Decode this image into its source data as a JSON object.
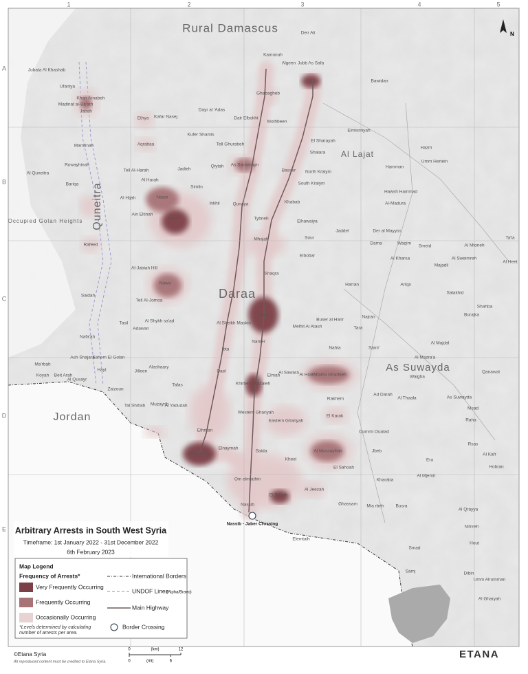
{
  "title": "Arbitrary Arrests in South West Syria",
  "timeframe": "Timeframe: 1st January 2022 - 31st December 2022",
  "date": "6th February 2023",
  "grid": {
    "columns": [
      "1",
      "2",
      "3",
      "4",
      "5"
    ],
    "rows": [
      "A",
      "B",
      "C",
      "D",
      "E"
    ]
  },
  "regions": [
    "Rural Damascus",
    "Al Lajat",
    "Quneitra",
    "Daraa",
    "As Suwayda",
    "Jordan",
    "Occupied Golan Heights"
  ],
  "places": [
    "Kamonah",
    "Deir Ali",
    "Algeen",
    "Jubb As Safa",
    "Ghabagheb",
    "Dayr al 'Adas",
    "Dair Elbokht",
    "Mothbeen",
    "Kafar Nasej",
    "Ethya",
    "Aqrabaa",
    "Kufer Shamis",
    "Tell Ghurabeh",
    "Qiytah",
    "Jadieh",
    "As Sanamayn",
    "Basser",
    "Shaiara",
    "North Kraiym",
    "South Kraiym",
    "Nazar",
    "Simlin",
    "Inkhil",
    "Qunaya",
    "Jasim",
    "Khabab",
    "Tybneh",
    "Elhawaiya",
    "Mhajah",
    "Elbobar",
    "Nawa",
    "Shaqra",
    "Izraa",
    "Al Sheikh Maskin",
    "Melhit Al Atash",
    "Buser al Harir",
    "Nahta",
    "Namer",
    "Ibta",
    "Dael",
    "Elmah",
    "Al Sawara",
    "Al Hrak",
    "Mlaiha Gharbieh",
    "Khirbet Ghazaleh",
    "Rakhem",
    "Western Ghariyah",
    "Eastern Ghariyah",
    "El Karak",
    "Al Mussayfrah",
    "Saida",
    "Kheel",
    "El Sahoah",
    "Om elmiathin",
    "Al Jeezah",
    "El Taibah",
    "Nassib",
    "Daraa City",
    "Ethman",
    "Elnaymah",
    "Muzayrib",
    "Tafas",
    "Al Yadudah",
    "Tal Shihab",
    "Jilleen",
    "Alashaary",
    "Tasil",
    "Adawan",
    "Al Shykh sa'ad",
    "Tell Al-Jomoa",
    "Al-Jabiah Hill",
    "Al Quneitra",
    "Jubata Al Khashab",
    "Ufaniya",
    "Madinat al-Ba'ath",
    "Khan Arnabeh",
    "Jabah",
    "Mamtinah",
    "Ruwayhinah",
    "Bariqa",
    "Rafeed",
    "Saidah",
    "Tell Al-Harah",
    "Al Harah",
    "Al Hijah",
    "Ain Eltinah",
    "Sahem El Golan",
    "Zaizoun",
    "Hayt",
    "Nafa'ah",
    "Ash Shajara",
    "Ma'rbah",
    "Koyah",
    "Beit Arah",
    "Al Qusayr",
    "Bawidan",
    "Elmismiyah",
    "El Sharayah",
    "Hazm",
    "Umm Hertein",
    "Hamman",
    "Hawsh Hammad",
    "Al-Madura",
    "Der al Mayyss",
    "Jaddel",
    "Sour",
    "Dama",
    "Waqim",
    "Smeid",
    "Al Kharsa",
    "Al Mtoneh",
    "Ta'la",
    "Majadil",
    "Al Sweimreh",
    "Al Heet",
    "Harran",
    "Ariqa",
    "Salakhid",
    "Najran",
    "Tara",
    "Shahba",
    "Burajka",
    "Al Majdal",
    "Al Mazra'a",
    "Sami'",
    "Walgha",
    "Qanawat",
    "Ad Darah",
    "Al Thaala",
    "As Suwayda",
    "Msad",
    "Raha",
    "Oummi Oualad",
    "Jbeb",
    "Rsas",
    "Al Kafr",
    "Era",
    "Kharaba",
    "Al Mjemir",
    "Hobran",
    "Busra",
    "Ghassam",
    "Mia rbeh",
    "Al Qrayya",
    "Nimreh",
    "Hout",
    "Smad",
    "Elemtaih",
    "Samj",
    "Dibin",
    "Umm Alrumman",
    "Al Gharyah"
  ],
  "crossing": "Nassib - Jaber Crossing",
  "north": "N",
  "legend": {
    "heading": "Map Legend",
    "subheading": "Frequency of Arrests*",
    "levels": [
      "Very Frequently Occurring",
      "Frequently Occurring",
      "Occasionally Occurring"
    ],
    "note": "*Levels determined by calculating number of arrests per area.",
    "lines": [
      "International Borders",
      "UNDOF Lines",
      "Main Highway"
    ],
    "undof_note": "(Alpha/Bravo)",
    "crossing": "Border Crossing"
  },
  "scale": {
    "km": "(km)",
    "mi": "(mi)",
    "km_ticks": [
      0,
      12
    ],
    "mi_ticks": [
      0,
      6
    ]
  },
  "credits": {
    "copyright": "©Etana Syria",
    "note": "All reproduced content must be credited to Etana Syria.",
    "logo": "ETANA"
  }
}
